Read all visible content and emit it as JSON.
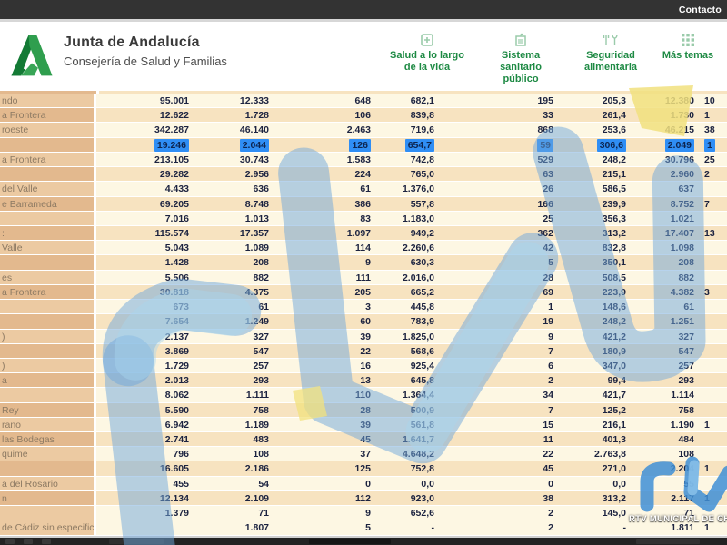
{
  "topbar": {
    "contact_label": "Contacto"
  },
  "header": {
    "title": "Junta de Andalucía",
    "subtitle": "Consejería de Salud y Familias",
    "nav": [
      {
        "label": "Salud a lo largo\nde la vida",
        "icon": "health-life-icon"
      },
      {
        "label": "Sistema\nsanitario\npúblico",
        "icon": "hospital-building-icon"
      },
      {
        "label": "Seguridad\nalimentaria",
        "icon": "food-safety-icon"
      },
      {
        "label": "Más temas",
        "icon": "grid-icon"
      }
    ]
  },
  "colors": {
    "accent_green": "#1e8a44",
    "selection_blue": "#2f8ef5",
    "watermark_blue": "#6fa8dc",
    "watermark_yellow": "#f1e17e"
  },
  "table": {
    "selected_row_index": 3,
    "rows": [
      {
        "name": "ndo",
        "values": [
          "95.001",
          "12.333",
          "648",
          "682,1",
          "195",
          "205,3",
          "12.380",
          "10"
        ]
      },
      {
        "name": "a Frontera",
        "values": [
          "12.622",
          "1.728",
          "106",
          "839,8",
          "33",
          "261,4",
          "1.730",
          "1"
        ]
      },
      {
        "name": "roeste",
        "values": [
          "342.287",
          "46.140",
          "2.463",
          "719,6",
          "868",
          "253,6",
          "46.215",
          "38"
        ]
      },
      {
        "name": "",
        "values": [
          "19.246",
          "2.044",
          "126",
          "654,7",
          "59",
          "306,6",
          "2.049",
          "1"
        ]
      },
      {
        "name": "a Frontera",
        "values": [
          "213.105",
          "30.743",
          "1.583",
          "742,8",
          "529",
          "248,2",
          "30.796",
          "25"
        ]
      },
      {
        "name": "",
        "values": [
          "29.282",
          "2.956",
          "224",
          "765,0",
          "63",
          "215,1",
          "2.960",
          "2"
        ]
      },
      {
        "name": "del Valle",
        "values": [
          "4.433",
          "636",
          "61",
          "1.376,0",
          "26",
          "586,5",
          "637",
          ""
        ]
      },
      {
        "name": "e Barrameda",
        "values": [
          "69.205",
          "8.748",
          "386",
          "557,8",
          "166",
          "239,9",
          "8.752",
          "7"
        ]
      },
      {
        "name": "",
        "values": [
          "7.016",
          "1.013",
          "83",
          "1.183,0",
          "25",
          "356,3",
          "1.021",
          ""
        ]
      },
      {
        "name": ":",
        "values": [
          "115.574",
          "17.357",
          "1.097",
          "949,2",
          "362",
          "313,2",
          "17.407",
          "13"
        ]
      },
      {
        "name": "Valle",
        "values": [
          "5.043",
          "1.089",
          "114",
          "2.260,6",
          "42",
          "832,8",
          "1.098",
          ""
        ]
      },
      {
        "name": "",
        "values": [
          "1.428",
          "208",
          "9",
          "630,3",
          "5",
          "350,1",
          "208",
          ""
        ]
      },
      {
        "name": "es",
        "values": [
          "5.506",
          "882",
          "111",
          "2.016,0",
          "28",
          "508,5",
          "882",
          ""
        ]
      },
      {
        "name": "a Frontera",
        "values": [
          "30.818",
          "4.375",
          "205",
          "665,2",
          "69",
          "223,9",
          "4.382",
          "3"
        ]
      },
      {
        "name": "",
        "values": [
          "673",
          "61",
          "3",
          "445,8",
          "1",
          "148,6",
          "61",
          ""
        ]
      },
      {
        "name": "",
        "values": [
          "7.654",
          "1.249",
          "60",
          "783,9",
          "19",
          "248,2",
          "1.251",
          ""
        ]
      },
      {
        "name": ")",
        "values": [
          "2.137",
          "327",
          "39",
          "1.825,0",
          "9",
          "421,2",
          "327",
          ""
        ]
      },
      {
        "name": "",
        "values": [
          "3.869",
          "547",
          "22",
          "568,6",
          "7",
          "180,9",
          "547",
          ""
        ]
      },
      {
        "name": ")",
        "values": [
          "1.729",
          "257",
          "16",
          "925,4",
          "6",
          "347,0",
          "257",
          ""
        ]
      },
      {
        "name": "a",
        "values": [
          "2.013",
          "293",
          "13",
          "645,8",
          "2",
          "99,4",
          "293",
          ""
        ]
      },
      {
        "name": "",
        "values": [
          "8.062",
          "1.111",
          "110",
          "1.364,4",
          "34",
          "421,7",
          "1.114",
          ""
        ]
      },
      {
        "name": "Rey",
        "values": [
          "5.590",
          "758",
          "28",
          "500,9",
          "7",
          "125,2",
          "758",
          ""
        ]
      },
      {
        "name": "rano",
        "values": [
          "6.942",
          "1.189",
          "39",
          "561,8",
          "15",
          "216,1",
          "1.190",
          "1"
        ]
      },
      {
        "name": "las Bodegas",
        "values": [
          "2.741",
          "483",
          "45",
          "1.641,7",
          "11",
          "401,3",
          "484",
          ""
        ]
      },
      {
        "name": "quime",
        "values": [
          "796",
          "108",
          "37",
          "4.648,2",
          "22",
          "2.763,8",
          "108",
          ""
        ]
      },
      {
        "name": "",
        "values": [
          "16.605",
          "2.186",
          "125",
          "752,8",
          "45",
          "271,0",
          "2.204",
          "1"
        ]
      },
      {
        "name": "a del Rosario",
        "values": [
          "455",
          "54",
          "0",
          "0,0",
          "0",
          "0,0",
          "55",
          ""
        ]
      },
      {
        "name": "n",
        "values": [
          "12.134",
          "2.109",
          "112",
          "923,0",
          "38",
          "313,2",
          "2.117",
          "1"
        ]
      },
      {
        "name": "",
        "values": [
          "1.379",
          "71",
          "9",
          "652,6",
          "2",
          "145,0",
          "71",
          ""
        ]
      },
      {
        "name": "de Cádiz sin especificar",
        "values": [
          "",
          "1.807",
          "5",
          "-",
          "2",
          "-",
          "1.811",
          "1"
        ]
      }
    ]
  },
  "watermark": {
    "logo_text": "rtv",
    "station_label": "RTV MUNICIPAL DE CH"
  }
}
